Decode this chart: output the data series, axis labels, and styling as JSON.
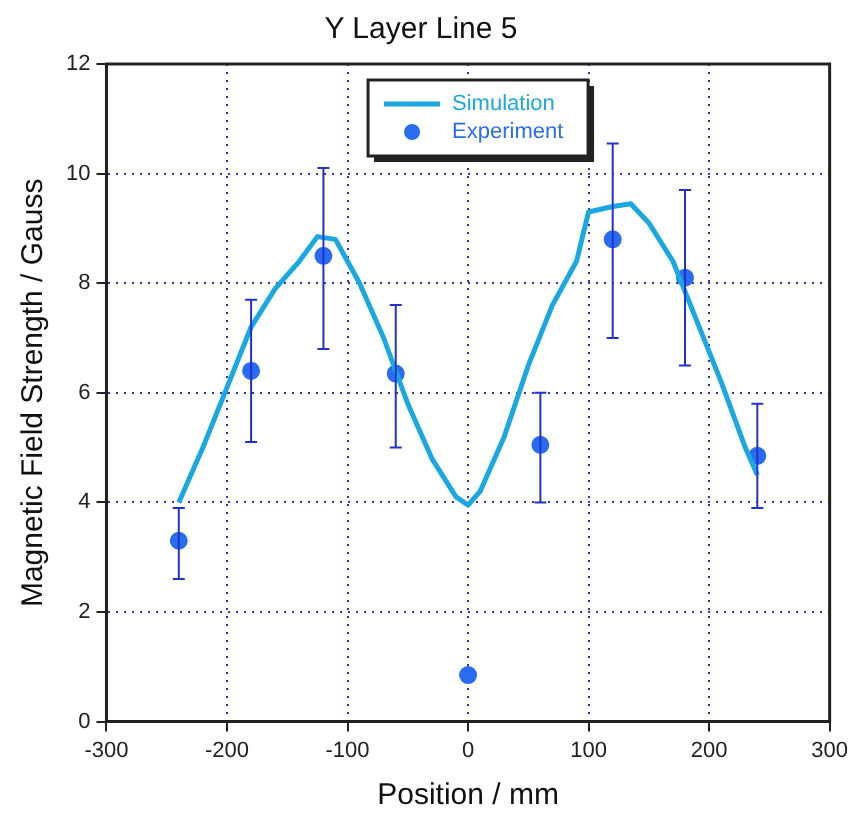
{
  "chart_data": {
    "type": "line",
    "title": "Y Layer Line 5",
    "xlabel": "Position / mm",
    "ylabel": "Magnetic Field Strength / Gauss",
    "xlim": [
      -300,
      300
    ],
    "xticks": [
      -300,
      -200,
      -100,
      0,
      100,
      200,
      300
    ],
    "ylim": [
      0,
      12
    ],
    "yticks": [
      0,
      2,
      4,
      6,
      8,
      10,
      12
    ],
    "grid": true,
    "legend": "top",
    "series": [
      {
        "name": "Simulation",
        "color": "#1ba8e0",
        "marker": "none",
        "x": [
          -240,
          -220,
          -200,
          -180,
          -160,
          -140,
          -125,
          -110,
          -90,
          -70,
          -50,
          -30,
          -10,
          0,
          10,
          30,
          50,
          70,
          90,
          100,
          120,
          135,
          150,
          170,
          190,
          210,
          230,
          240
        ],
        "values": [
          4.0,
          5.0,
          6.1,
          7.2,
          7.9,
          8.4,
          8.85,
          8.8,
          8.0,
          7.0,
          5.8,
          4.8,
          4.1,
          3.95,
          4.2,
          5.2,
          6.5,
          7.6,
          8.4,
          9.3,
          9.4,
          9.45,
          9.1,
          8.4,
          7.3,
          6.2,
          5.0,
          4.5
        ]
      },
      {
        "name": "Experiment",
        "type": "scatter",
        "color": "#2a6cf0",
        "marker": "circle",
        "x": [
          -240,
          -180,
          -120,
          -60,
          0,
          60,
          120,
          180,
          240
        ],
        "values": [
          3.3,
          6.4,
          8.5,
          6.35,
          0.85,
          5.05,
          8.8,
          8.1,
          4.85
        ],
        "errors": [
          [
            2.6,
            3.9
          ],
          [
            5.1,
            7.7
          ],
          [
            6.8,
            10.1
          ],
          [
            5.0,
            7.6
          ],
          null,
          [
            4.0,
            6.0
          ],
          [
            7.0,
            10.55
          ],
          [
            6.5,
            9.7
          ],
          [
            3.9,
            5.8
          ]
        ]
      }
    ]
  }
}
